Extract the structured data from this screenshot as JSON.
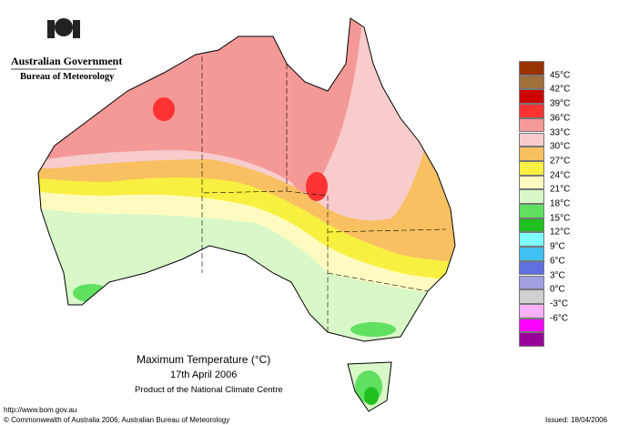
{
  "header": {
    "government": "Australian Government",
    "bureau": "Bureau of Meteorology"
  },
  "title": "Maximum Temperature (°C)",
  "date": "17th April 2006",
  "credit": "Product of the National Climate Centre",
  "footer": {
    "url": "http://www.bom.gov.au",
    "copyright": "© Commonwealth of Australia 2006, Australian Bureau of Meteorology",
    "issued": "Issued: 18/04/2006"
  },
  "legend": {
    "labels": [
      "45°C",
      "42°C",
      "39°C",
      "36°C",
      "33°C",
      "30°C",
      "27°C",
      "24°C",
      "21°C",
      "18°C",
      "15°C",
      "12°C",
      "9°C",
      "6°C",
      "3°C",
      "0°C",
      "-3°C",
      "-6°C"
    ],
    "colors": [
      "#993300",
      "#a0703a",
      "#cc0000",
      "#ff3333",
      "#f59898",
      "#f8cccc",
      "#f8c060",
      "#f8f040",
      "#fffbc0",
      "#d8f8c8",
      "#60e060",
      "#20c020",
      "#80ffff",
      "#40c0f0",
      "#6070e0",
      "#a0a0e0",
      "#d0d0d0",
      "#ffb0ff",
      "#ff00ff",
      "#990099"
    ]
  }
}
